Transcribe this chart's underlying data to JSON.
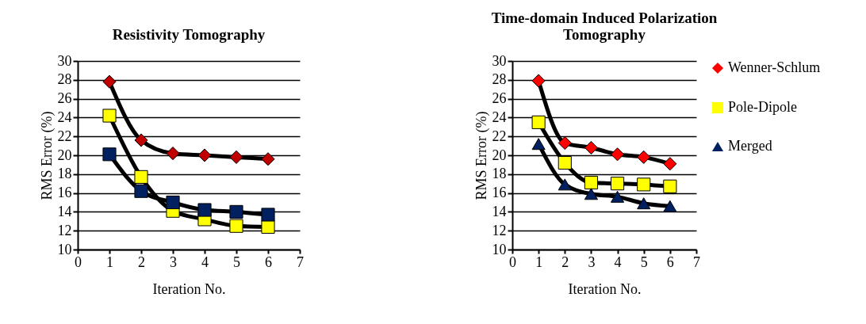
{
  "chart_data": [
    {
      "type": "line",
      "title": "Resistivity Tomography",
      "xlabel": "Iteration No.",
      "ylabel": "RMS Error (%)",
      "x": [
        1,
        2,
        3,
        4,
        5,
        6
      ],
      "xlim": [
        0,
        7
      ],
      "xticks": [
        0,
        1,
        2,
        3,
        4,
        5,
        6,
        7
      ],
      "ylim": [
        10,
        30
      ],
      "yticks": [
        10,
        12,
        14,
        16,
        18,
        20,
        22,
        24,
        26,
        28,
        30
      ],
      "grid": "y",
      "legend": false,
      "series": [
        {
          "color": "#c00000",
          "marker": "diamond",
          "values": [
            27.8,
            21.6,
            20.2,
            20.0,
            19.8,
            19.6
          ]
        },
        {
          "color": "#ffff00",
          "marker": "square",
          "values": [
            24.2,
            17.7,
            14.1,
            13.2,
            12.5,
            12.4
          ]
        },
        {
          "color": "#002060",
          "marker": "square",
          "values": [
            20.1,
            16.2,
            15.0,
            14.2,
            14.0,
            13.7
          ]
        }
      ]
    },
    {
      "type": "line",
      "title": "Time-domain Induced Polarization Tomography",
      "xlabel": "Iteration No.",
      "ylabel": "RMS Error (%)",
      "x": [
        1,
        2,
        3,
        4,
        5,
        6
      ],
      "xlim": [
        0,
        7
      ],
      "xticks": [
        0,
        1,
        2,
        3,
        4,
        5,
        6,
        7
      ],
      "ylim": [
        10,
        30
      ],
      "yticks": [
        10,
        12,
        14,
        16,
        18,
        20,
        22,
        24,
        26,
        28,
        30
      ],
      "grid": "y",
      "legend": "right",
      "series": [
        {
          "name": "Wenner-Schlum",
          "color": "#ff0000",
          "marker": "diamond",
          "values": [
            27.9,
            21.3,
            20.8,
            20.1,
            19.8,
            19.1
          ]
        },
        {
          "name": "Pole-Dipole",
          "color": "#ffff00",
          "marker": "square",
          "values": [
            23.5,
            19.2,
            17.1,
            17.0,
            16.9,
            16.7
          ]
        },
        {
          "name": "Merged",
          "color": "#002060",
          "marker": "triangle",
          "values": [
            21.2,
            16.9,
            15.9,
            15.6,
            14.9,
            14.6
          ]
        }
      ]
    }
  ]
}
